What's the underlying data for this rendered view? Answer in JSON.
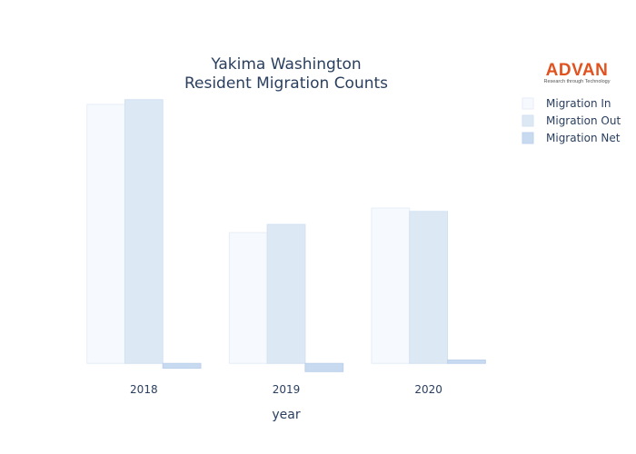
{
  "logo": {
    "name": "ADVAN",
    "tagline": "Research through Technology",
    "color": "#e0521f"
  },
  "chart_data": {
    "type": "bar",
    "title_lines": [
      "Yakima Washington",
      "Resident Migration Counts"
    ],
    "xlabel": "year",
    "ylabel": "",
    "categories": [
      "2018",
      "2019",
      "2020"
    ],
    "ylim": [
      -1300,
      40000
    ],
    "grid": false,
    "legend_position": "top-right",
    "series": [
      {
        "name": "Migration In",
        "values": [
          38000,
          19200,
          22800
        ],
        "color": "#f6f9fd",
        "stroke": "#e6eef8"
      },
      {
        "name": "Migration Out",
        "values": [
          38700,
          20400,
          22300
        ],
        "color": "#dde8f5",
        "stroke": "#d2e1f2"
      },
      {
        "name": "Migration Net",
        "values": [
          -700,
          -1200,
          500
        ],
        "color": "#c8daf0",
        "stroke": "#bcd1ec"
      }
    ]
  }
}
